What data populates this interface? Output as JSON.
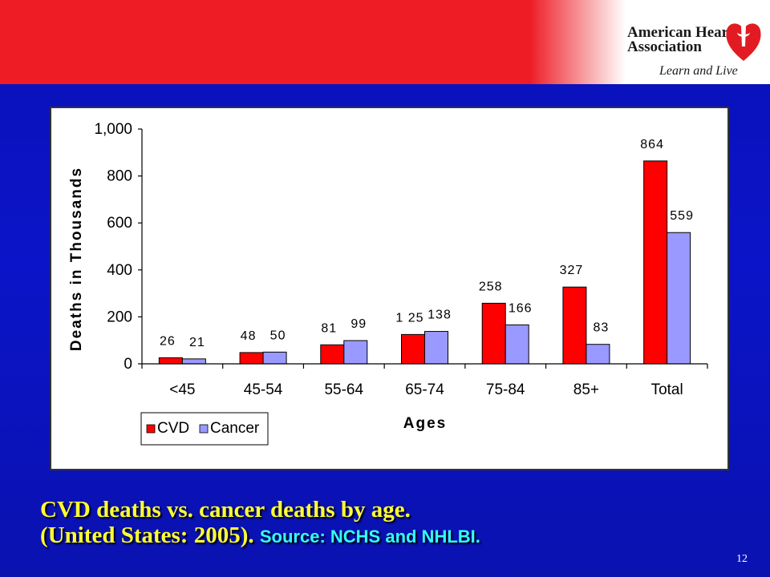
{
  "logo": {
    "name": "American Heart Association",
    "tagline": "Learn and Live"
  },
  "caption": {
    "line1": "CVD deaths vs. cancer deaths by age.",
    "line2": "(United States: 2005).",
    "source": "Source: NCHS and NHLBI."
  },
  "page_number": "12",
  "colors": {
    "cvd": "#ff0000",
    "cancer": "#9999ff",
    "background": "#0b14c8",
    "top_band": "#ee1c25",
    "caption_text": "#ffff33",
    "source_text": "#33ffff"
  },
  "chart_data": {
    "type": "bar",
    "categories": [
      "<45",
      "45-54",
      "55-64",
      "65-74",
      "75-84",
      "85+",
      "Total"
    ],
    "series": [
      {
        "name": "CVD",
        "values": [
          26,
          48,
          81,
          125,
          258,
          327,
          864
        ],
        "labels": [
          "26",
          "48",
          "81",
          "1 25",
          "258",
          "327",
          "864"
        ]
      },
      {
        "name": "Cancer",
        "values": [
          21,
          50,
          99,
          138,
          166,
          83,
          559
        ],
        "labels": [
          "21",
          "50",
          "99",
          "138",
          "166",
          "83",
          "559"
        ]
      }
    ],
    "xlabel": "Ages",
    "ylabel": "Deaths in Thousands",
    "ylim": [
      0,
      1000
    ],
    "yticks": [
      0,
      200,
      400,
      600,
      800,
      1000
    ],
    "ytick_labels": [
      "0",
      "200",
      "400",
      "600",
      "800",
      "1,000"
    ],
    "legend_position": "bottom-left",
    "grid": false
  }
}
